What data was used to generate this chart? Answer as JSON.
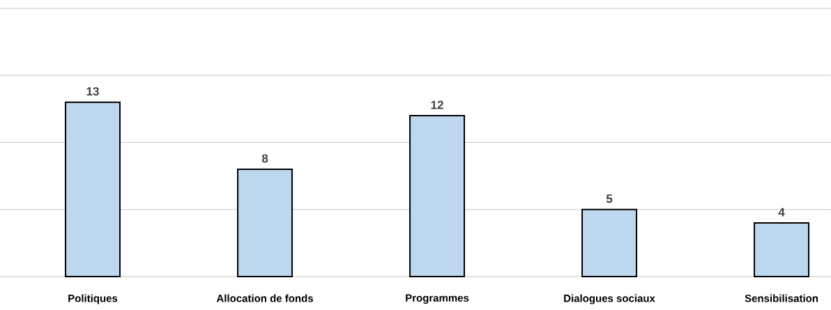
{
  "chart_data": {
    "type": "bar",
    "categories": [
      "Politiques",
      "Allocation de fonds",
      "Programmes",
      "Dialogues sociaux",
      "Sensibilisation"
    ],
    "values": [
      13,
      8,
      12,
      5,
      4
    ],
    "color": "#bdd7ee",
    "ylim": [
      0,
      20
    ],
    "yticks": [
      {
        "value": 0,
        "label": null
      },
      {
        "value": 5,
        "label": null
      },
      {
        "value": 10,
        "label": null
      },
      {
        "value": 15,
        "label": null
      },
      {
        "value": 20,
        "label": null
      }
    ],
    "grid": "y",
    "tick_labels": "x",
    "data_labels": true
  }
}
